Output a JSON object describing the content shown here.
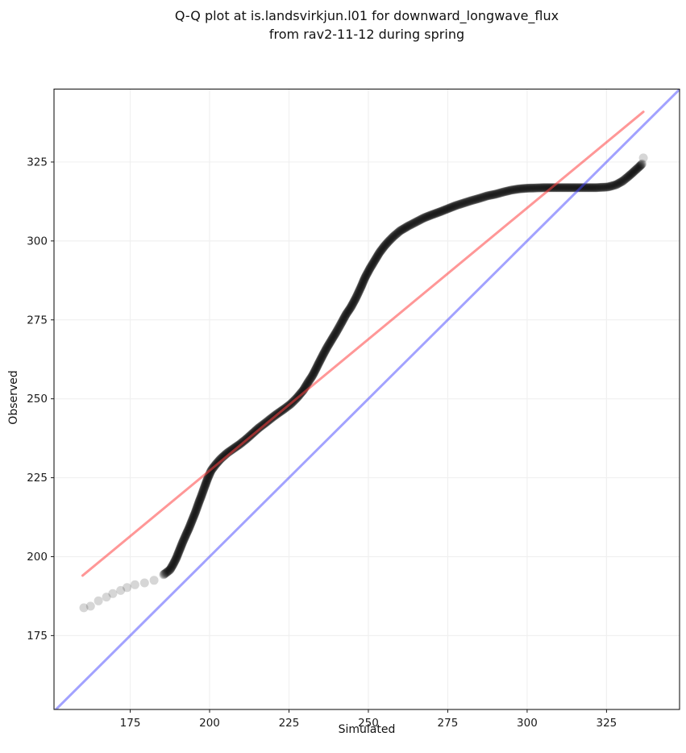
{
  "title": {
    "line1": "Q-Q plot at is.landsvirkjun.l01 for downward_longwave_flux",
    "line2": "from rav2-11-12 during spring"
  },
  "chart_data": {
    "type": "scatter",
    "title": "Q-Q plot at is.landsvirkjun.l01 for downward_longwave_flux\nfrom rav2-11-12 during spring",
    "xlabel": "Simulated",
    "ylabel": "Observed",
    "xlim": [
      151,
      348
    ],
    "ylim": [
      151.6,
      348.1
    ],
    "xticks": [
      175,
      200,
      225,
      250,
      275,
      300,
      325
    ],
    "yticks": [
      175,
      200,
      225,
      250,
      275,
      300,
      325
    ],
    "grid": true,
    "legend": "none",
    "colors": {
      "background": "#ffffff",
      "grid": "#f0f0f0",
      "spine": "#1a1a1a",
      "text": "#1a1a1a",
      "scatter": "#000000",
      "identity_line": "rgba(70,70,255,0.5)",
      "fit_line": "rgba(255,65,65,0.55)"
    },
    "series": [
      {
        "name": "qq-quantile-points",
        "type": "scatter",
        "color": "#000000",
        "alpha": 0.16,
        "marker_radius": 5.5,
        "dense_x_range": [
          185,
          336.4
        ],
        "points": [
          [
            160.4,
            183.8
          ],
          [
            162.5,
            184.3
          ],
          [
            165,
            186
          ],
          [
            167.5,
            187.2
          ],
          [
            169.5,
            188.3
          ],
          [
            172,
            189.3
          ],
          [
            174,
            190.2
          ],
          [
            176.5,
            191.1
          ],
          [
            179.5,
            191.7
          ],
          [
            182.5,
            192.5
          ],
          [
            185.5,
            194.3
          ],
          [
            187.5,
            195.8
          ],
          [
            188.5,
            197.5
          ],
          [
            189.5,
            199.5
          ],
          [
            190.5,
            202
          ],
          [
            191.5,
            204.5
          ],
          [
            192.5,
            206.8
          ],
          [
            193.5,
            209
          ],
          [
            194.5,
            211.5
          ],
          [
            195.5,
            214
          ],
          [
            196.5,
            216.8
          ],
          [
            197.5,
            219.5
          ],
          [
            198.5,
            222.3
          ],
          [
            199.5,
            225
          ],
          [
            200.5,
            227.3
          ],
          [
            202,
            229.3
          ],
          [
            203.5,
            231
          ],
          [
            205.5,
            232.8
          ],
          [
            207.5,
            234.2
          ],
          [
            209.5,
            235.6
          ],
          [
            211.5,
            237.2
          ],
          [
            213.5,
            239
          ],
          [
            215.5,
            240.8
          ],
          [
            217.5,
            242.3
          ],
          [
            219.5,
            243.9
          ],
          [
            221.5,
            245.4
          ],
          [
            223.5,
            246.8
          ],
          [
            225.5,
            248.3
          ],
          [
            227.5,
            250.3
          ],
          [
            229.5,
            252.7
          ],
          [
            231,
            255.2
          ],
          [
            232.5,
            257.5
          ],
          [
            234,
            260.5
          ],
          [
            235.5,
            263.5
          ],
          [
            237,
            266.3
          ],
          [
            238.5,
            268.8
          ],
          [
            240,
            271.3
          ],
          [
            241.5,
            274
          ],
          [
            243,
            276.8
          ],
          [
            244.5,
            279
          ],
          [
            246,
            281.8
          ],
          [
            247.5,
            285
          ],
          [
            249,
            288.5
          ],
          [
            250.5,
            291.3
          ],
          [
            252,
            293.8
          ],
          [
            253.5,
            296.3
          ],
          [
            255,
            298.3
          ],
          [
            256.5,
            300
          ],
          [
            258,
            301.5
          ],
          [
            260,
            303.2
          ],
          [
            262.5,
            304.7
          ],
          [
            265,
            306
          ],
          [
            267.5,
            307.3
          ],
          [
            270,
            308.3
          ],
          [
            272.5,
            309.2
          ],
          [
            275,
            310.2
          ],
          [
            277.5,
            311.2
          ],
          [
            280,
            312
          ],
          [
            282.5,
            312.8
          ],
          [
            285,
            313.5
          ],
          [
            287.5,
            314.3
          ],
          [
            290,
            314.8
          ],
          [
            292.5,
            315.5
          ],
          [
            295,
            316.1
          ],
          [
            297.5,
            316.5
          ],
          [
            300,
            316.7
          ],
          [
            303,
            316.8
          ],
          [
            306,
            316.9
          ],
          [
            310,
            316.9
          ],
          [
            314,
            316.9
          ],
          [
            318,
            316.9
          ],
          [
            322,
            316.9
          ],
          [
            325.5,
            317.1
          ],
          [
            328,
            317.8
          ],
          [
            330,
            318.9
          ],
          [
            331.5,
            320.1
          ],
          [
            333,
            321.4
          ],
          [
            334.3,
            322.6
          ],
          [
            335.3,
            323.5
          ],
          [
            336.2,
            324.4
          ],
          [
            336.6,
            326.3
          ]
        ]
      },
      {
        "name": "fit-line",
        "type": "line",
        "color": "rgba(255,65,65,0.55)",
        "width": 3,
        "points": [
          [
            160,
            194.0
          ],
          [
            336.6,
            340.9
          ]
        ]
      },
      {
        "name": "identity-line",
        "type": "line",
        "color": "rgba(70,70,255,0.5)",
        "width": 3,
        "points": [
          [
            151,
            151
          ],
          [
            348,
            348
          ]
        ]
      }
    ]
  }
}
